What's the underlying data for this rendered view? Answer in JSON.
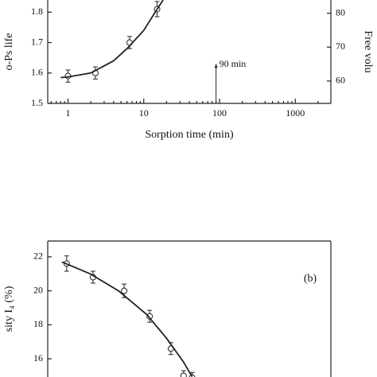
{
  "chart_data": [
    {
      "type": "scatter",
      "xscale": "log",
      "minor_ticks": true,
      "x_label": "Sorption time (min)",
      "y_label": "o-Ps life",
      "y2_label": "Free volu",
      "xlim": [
        0.54,
        2950
      ],
      "xticks": [
        1,
        10,
        100,
        1000
      ],
      "ylim": [
        1.5,
        1.84
      ],
      "yticks": [
        1.5,
        1.6,
        1.7,
        1.8
      ],
      "y2lim": [
        53.4,
        83.9
      ],
      "y2ticks": [
        60,
        70,
        80
      ],
      "color": "#222",
      "series": [
        {
          "marker": "circle",
          "x": [
            1,
            2.3,
            6.5,
            15
          ],
          "values": [
            1.59,
            1.6,
            1.7,
            1.81
          ],
          "errors": [
            0.02,
            0.02,
            0.02,
            0.025
          ]
        },
        {
          "marker": "none",
          "x": [
            0.8,
            1,
            2,
            4,
            6,
            10,
            15,
            18
          ],
          "values": [
            1.585,
            1.587,
            1.6,
            1.64,
            1.68,
            1.74,
            1.81,
            1.84
          ]
        }
      ],
      "annotations": [
        {
          "text": "90 min",
          "x": 90,
          "y": 1.63
        }
      ]
    },
    {
      "type": "scatter",
      "xscale": "linear",
      "y_label": "sity I₄ (%)",
      "xlim": [
        0,
        100
      ],
      "ylim": [
        14.93,
        22.93
      ],
      "yticks": [
        16,
        18,
        20,
        22
      ],
      "color": "#222",
      "series": [
        {
          "marker": "circle",
          "x": [
            6.7,
            16,
            27,
            36,
            43.5,
            48,
            51
          ],
          "values": [
            21.6,
            20.8,
            20.0,
            18.5,
            16.6,
            15.0,
            14.9
          ],
          "errors": [
            0.45,
            0.35,
            0.4,
            0.35,
            0.35,
            0.3,
            0.3
          ]
        },
        {
          "marker": "none",
          "x": [
            5,
            15,
            25,
            35,
            42,
            48,
            51
          ],
          "values": [
            21.7,
            21.0,
            20.0,
            18.6,
            17.2,
            15.8,
            14.95
          ]
        }
      ],
      "annotations": [
        {
          "text": "(b)",
          "x": 92.7,
          "y": 20.7
        }
      ]
    }
  ]
}
